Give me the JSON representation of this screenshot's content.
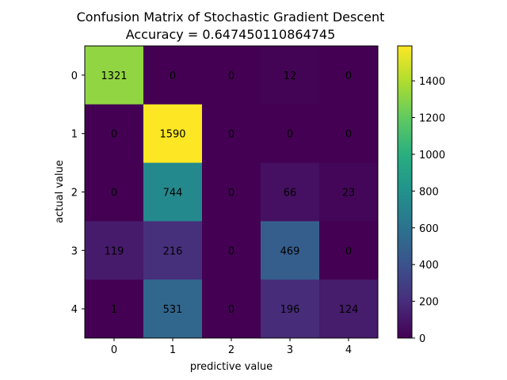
{
  "chart_data": {
    "type": "heatmap",
    "title": "Confusion Matrix of Stochastic Gradient Descent",
    "subtitle": "Accuracy = 0.647450110864745",
    "xlabel": "predictive value",
    "ylabel": "actual value",
    "x_categories": [
      "0",
      "1",
      "2",
      "3",
      "4"
    ],
    "y_categories": [
      "0",
      "1",
      "2",
      "3",
      "4"
    ],
    "values": [
      [
        1321,
        0,
        0,
        12,
        0
      ],
      [
        0,
        1590,
        0,
        0,
        0
      ],
      [
        0,
        744,
        0,
        66,
        23
      ],
      [
        119,
        216,
        0,
        469,
        0
      ],
      [
        1,
        531,
        0,
        196,
        124
      ]
    ],
    "colormap": "viridis",
    "color_range": [
      0,
      1590
    ],
    "colorbar_ticks": [
      0,
      200,
      400,
      600,
      800,
      1000,
      1200,
      1400
    ]
  }
}
